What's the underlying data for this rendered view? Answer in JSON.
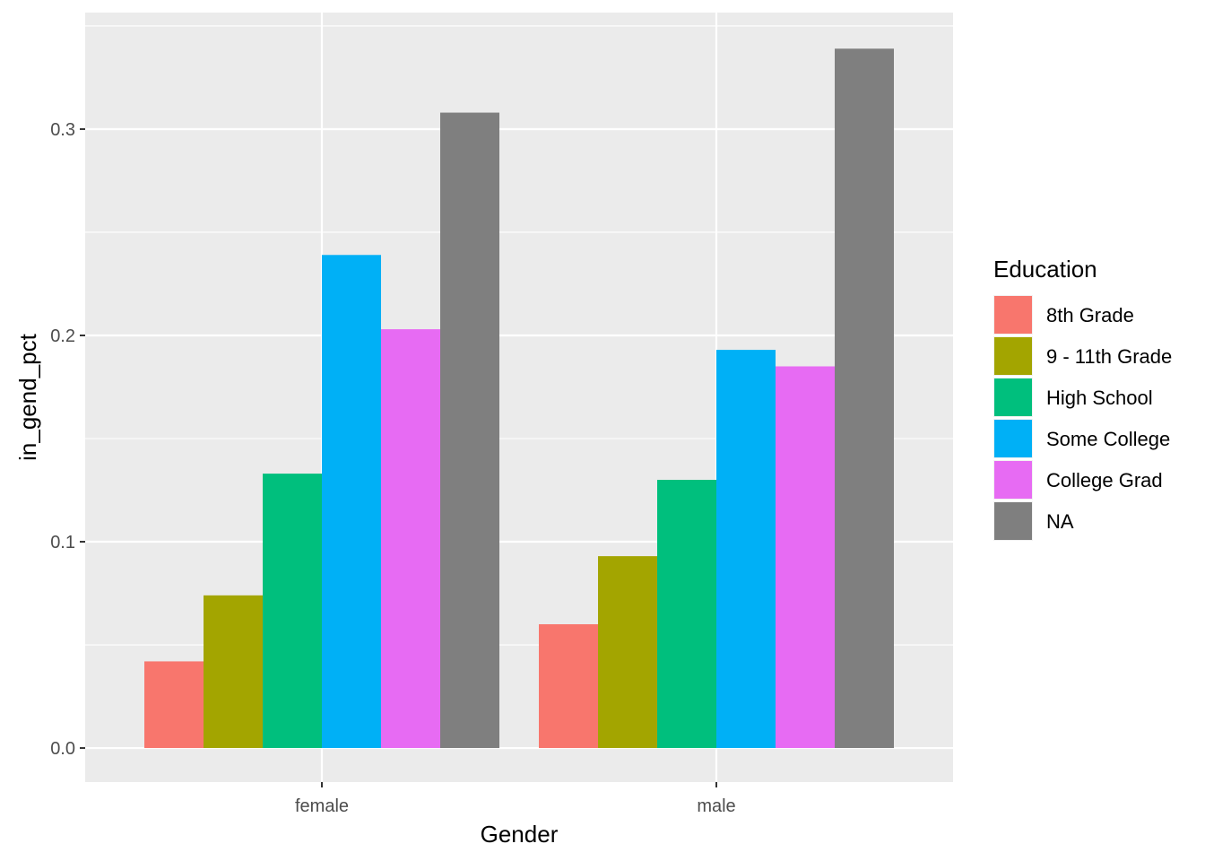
{
  "chart_data": {
    "type": "bar",
    "xlabel": "Gender",
    "ylabel": "in_gend_pct",
    "categories": [
      "female",
      "male"
    ],
    "ylim": [
      -0.0165,
      0.3565
    ],
    "yticks": [
      0.0,
      0.1,
      0.2,
      0.3
    ],
    "ytick_labels": [
      "0.0",
      "0.1",
      "0.2",
      "0.3"
    ],
    "grid": true,
    "legend_position": "right",
    "legend_title": "Education",
    "series": [
      {
        "name": "8th Grade",
        "color": "#F8766D",
        "values": [
          0.042,
          0.06
        ]
      },
      {
        "name": "9 - 11th Grade",
        "color": "#A3A500",
        "values": [
          0.074,
          0.093
        ]
      },
      {
        "name": "High School",
        "color": "#00BF7D",
        "values": [
          0.133,
          0.13
        ]
      },
      {
        "name": "Some College",
        "color": "#00B0F6",
        "values": [
          0.239,
          0.193
        ]
      },
      {
        "name": "College Grad",
        "color": "#E76BF3",
        "values": [
          0.203,
          0.185
        ]
      },
      {
        "name": "NA",
        "color": "#7F7F7F",
        "values": [
          0.308,
          0.339
        ]
      }
    ],
    "panel_background": "#EBEBEB",
    "grid_color": "#FFFFFF"
  }
}
